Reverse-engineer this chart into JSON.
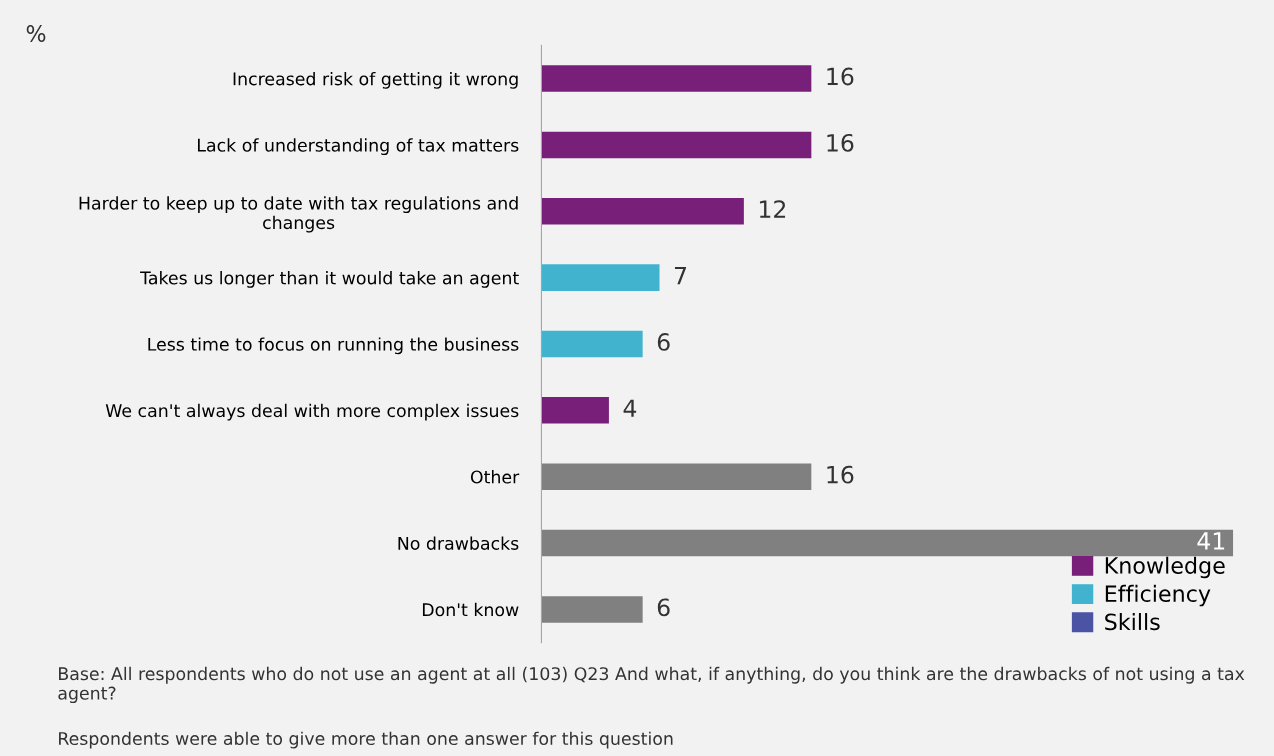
{
  "chart_data": {
    "type": "bar",
    "orientation": "horizontal",
    "ylabel": "%",
    "categories": [
      "Increased risk of getting it wrong",
      "Lack of understanding of tax matters",
      "Harder to keep up to date with tax regulations and changes",
      "Takes us longer than it would take an agent",
      "Less time to focus on running the business",
      "We can't always deal with more complex issues",
      "Other",
      "No drawbacks",
      "Don't know"
    ],
    "series": [
      {
        "name": "Knowledge",
        "color": "#782079",
        "values": [
          16,
          16,
          12,
          null,
          null,
          4,
          null,
          null,
          null
        ]
      },
      {
        "name": "Efficiency",
        "color": "#41b3ce",
        "values": [
          null,
          null,
          null,
          7,
          6,
          null,
          null,
          null,
          null
        ]
      },
      {
        "name": "Skills",
        "color": "#4b53a5",
        "values": [
          null,
          null,
          null,
          null,
          null,
          null,
          null,
          null,
          null
        ]
      },
      {
        "color": "#808080",
        "values": [
          null,
          null,
          null,
          null,
          null,
          null,
          16,
          41,
          6
        ]
      }
    ],
    "tick_labels": "y",
    "data_labels": true,
    "legend": "bottom right",
    "grid": false,
    "annotations": [
      "Base: All respondents who do not use an agent at all (103) Q23 And what, if anything, do you think are the drawbacks of not using a tax agent?",
      "Respondents were able to give more than one answer for this question"
    ]
  }
}
